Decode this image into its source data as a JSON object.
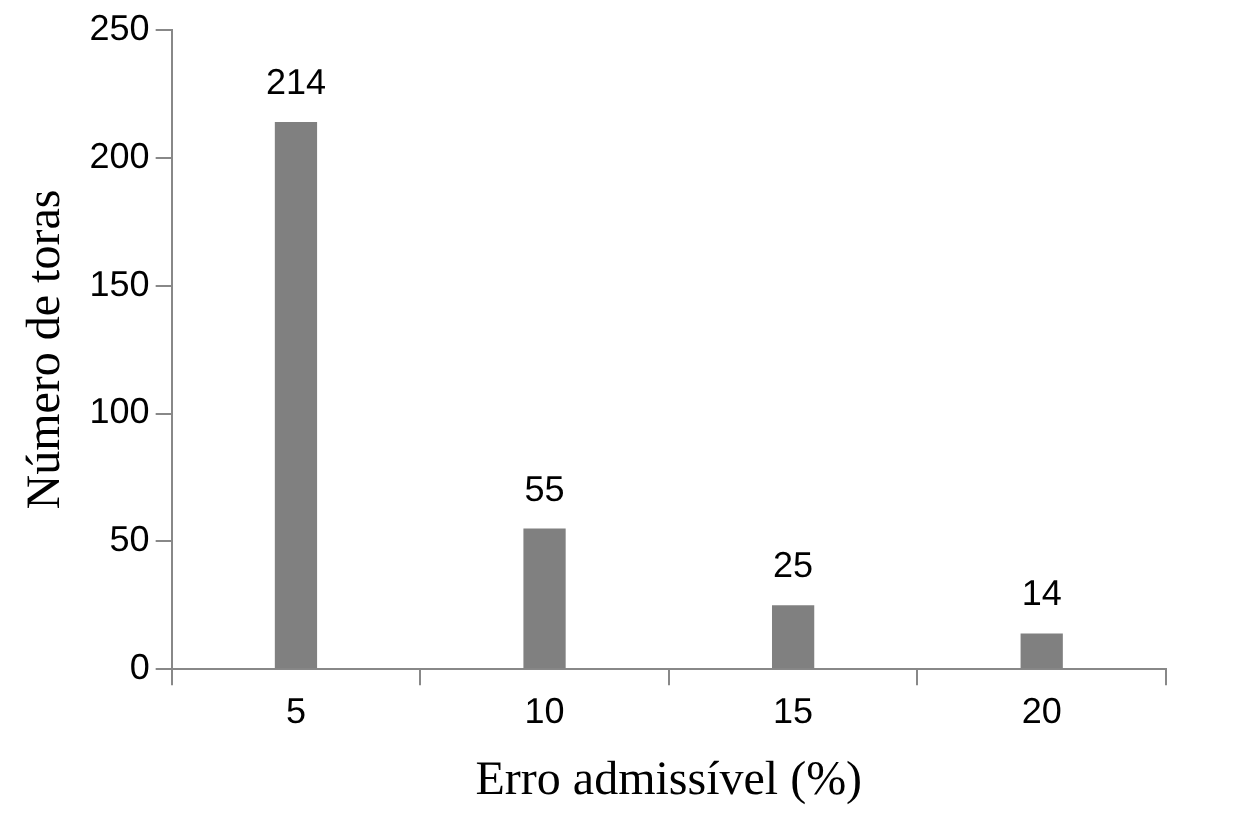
{
  "chart_data": {
    "type": "bar",
    "xlabel": "Erro admissível (%)",
    "ylabel": "Número de toras",
    "categories": [
      "5",
      "10",
      "15",
      "20"
    ],
    "values": [
      214,
      55,
      25,
      14
    ],
    "color": "#808080",
    "ylim": [
      0,
      250
    ],
    "yticks": [
      0,
      50,
      100,
      150,
      200,
      250
    ],
    "grid": false,
    "legend": false,
    "data_labels": true
  }
}
